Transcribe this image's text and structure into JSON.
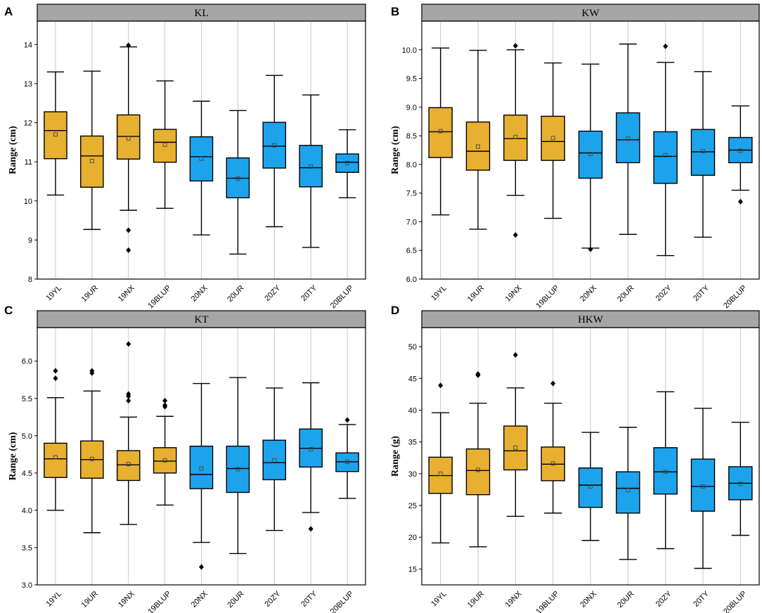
{
  "figure": {
    "colors": {
      "year2019": "#E8B030",
      "year2020": "#1CA3EC",
      "header": "#A6A6A6",
      "outlier": "#000000",
      "grid": "#C8C8C8"
    }
  },
  "chart_data": [
    {
      "type": "box",
      "panel": "A",
      "title": "KL",
      "ylabel": "Range (cm)",
      "ylim": [
        8,
        14.6
      ],
      "yticks": [
        8,
        9,
        10,
        11,
        12,
        13,
        14
      ],
      "categories": [
        "19YL",
        "19UR",
        "19NX",
        "19BLUP",
        "20NX",
        "20UR",
        "20ZY",
        "20TY",
        "20BLUP"
      ],
      "boxes": [
        {
          "min": 10.15,
          "q1": 11.08,
          "median": 11.8,
          "q3": 12.28,
          "max": 13.3,
          "mean": 11.7,
          "outliers": []
        },
        {
          "min": 9.27,
          "q1": 10.35,
          "median": 11.15,
          "q3": 11.66,
          "max": 13.32,
          "mean": 11.02,
          "outliers": []
        },
        {
          "min": 9.76,
          "q1": 11.07,
          "median": 11.65,
          "q3": 12.2,
          "max": 13.94,
          "mean": 11.6,
          "outliers": [
            13.98,
            9.25,
            8.74
          ]
        },
        {
          "min": 9.81,
          "q1": 10.99,
          "median": 11.5,
          "q3": 11.83,
          "max": 13.07,
          "mean": 11.44,
          "outliers": []
        },
        {
          "min": 9.13,
          "q1": 10.51,
          "median": 11.13,
          "q3": 11.64,
          "max": 12.55,
          "mean": 11.08,
          "outliers": []
        },
        {
          "min": 8.64,
          "q1": 10.08,
          "median": 10.58,
          "q3": 11.1,
          "max": 12.31,
          "mean": 10.57,
          "outliers": []
        },
        {
          "min": 9.34,
          "q1": 10.84,
          "median": 11.4,
          "q3": 12.01,
          "max": 13.21,
          "mean": 11.42,
          "outliers": []
        },
        {
          "min": 8.81,
          "q1": 10.36,
          "median": 10.85,
          "q3": 11.42,
          "max": 12.71,
          "mean": 10.88,
          "outliers": []
        },
        {
          "min": 10.08,
          "q1": 10.73,
          "median": 10.99,
          "q3": 11.2,
          "max": 11.82,
          "mean": 10.97,
          "outliers": []
        }
      ]
    },
    {
      "type": "box",
      "panel": "B",
      "title": "KW",
      "ylabel": "Range (cm)",
      "ylim": [
        6.0,
        10.5
      ],
      "yticks": [
        "6.0",
        "6.5",
        "7.0",
        "7.5",
        "8.0",
        "8.5",
        "9.0",
        "9.5",
        "10.0"
      ],
      "categories": [
        "19YL",
        "19UR",
        "19NX",
        "19BLUP",
        "20NX",
        "20UR",
        "20ZY",
        "20TY",
        "20BLUP"
      ],
      "boxes": [
        {
          "min": 7.12,
          "q1": 8.12,
          "median": 8.57,
          "q3": 8.99,
          "max": 10.03,
          "mean": 8.58,
          "outliers": []
        },
        {
          "min": 6.87,
          "q1": 7.9,
          "median": 8.23,
          "q3": 8.74,
          "max": 9.99,
          "mean": 8.31,
          "outliers": []
        },
        {
          "min": 7.46,
          "q1": 8.07,
          "median": 8.45,
          "q3": 8.86,
          "max": 10.0,
          "mean": 8.48,
          "outliers": [
            10.07,
            6.77
          ]
        },
        {
          "min": 7.06,
          "q1": 8.07,
          "median": 8.4,
          "q3": 8.84,
          "max": 9.77,
          "mean": 8.46,
          "outliers": []
        },
        {
          "min": 6.54,
          "q1": 7.76,
          "median": 8.2,
          "q3": 8.58,
          "max": 9.75,
          "mean": 8.18,
          "outliers": [
            6.52
          ]
        },
        {
          "min": 6.78,
          "q1": 8.03,
          "median": 8.43,
          "q3": 8.9,
          "max": 10.1,
          "mean": 8.45,
          "outliers": []
        },
        {
          "min": 6.41,
          "q1": 7.67,
          "median": 8.14,
          "q3": 8.57,
          "max": 9.78,
          "mean": 8.16,
          "outliers": [
            10.06
          ]
        },
        {
          "min": 6.73,
          "q1": 7.81,
          "median": 8.22,
          "q3": 8.61,
          "max": 9.62,
          "mean": 8.23,
          "outliers": []
        },
        {
          "min": 7.55,
          "q1": 8.03,
          "median": 8.25,
          "q3": 8.47,
          "max": 9.02,
          "mean": 8.24,
          "outliers": [
            7.35
          ]
        }
      ]
    },
    {
      "type": "box",
      "panel": "C",
      "title": "KT",
      "ylabel": "Range (cm)",
      "ylim": [
        3.0,
        6.45
      ],
      "yticks": [
        "3.0",
        "3.5",
        "4.0",
        "4.5",
        "5.0",
        "5.5",
        "6.0"
      ],
      "categories": [
        "19YL",
        "19UR",
        "19NX",
        "19BLUP",
        "20NX",
        "20UR",
        "20ZY",
        "20TY",
        "20BLUP"
      ],
      "boxes": [
        {
          "min": 4.0,
          "q1": 4.44,
          "median": 4.69,
          "q3": 4.9,
          "max": 5.51,
          "mean": 4.71,
          "outliers": [
            5.87,
            5.77
          ]
        },
        {
          "min": 3.7,
          "q1": 4.43,
          "median": 4.68,
          "q3": 4.93,
          "max": 5.6,
          "mean": 4.69,
          "outliers": [
            5.87,
            5.84
          ]
        },
        {
          "min": 3.81,
          "q1": 4.4,
          "median": 4.61,
          "q3": 4.8,
          "max": 5.25,
          "mean": 4.62,
          "outliers": [
            6.23,
            5.56,
            5.53,
            5.47
          ]
        },
        {
          "min": 4.07,
          "q1": 4.5,
          "median": 4.66,
          "q3": 4.84,
          "max": 5.26,
          "mean": 4.67,
          "outliers": [
            5.47,
            5.41,
            5.39
          ]
        },
        {
          "min": 3.57,
          "q1": 4.29,
          "median": 4.48,
          "q3": 4.86,
          "max": 5.7,
          "mean": 4.56,
          "outliers": [
            3.24
          ]
        },
        {
          "min": 3.42,
          "q1": 4.24,
          "median": 4.56,
          "q3": 4.86,
          "max": 5.78,
          "mean": 4.55,
          "outliers": []
        },
        {
          "min": 3.73,
          "q1": 4.41,
          "median": 4.64,
          "q3": 4.94,
          "max": 5.64,
          "mean": 4.67,
          "outliers": []
        },
        {
          "min": 3.97,
          "q1": 4.58,
          "median": 4.83,
          "q3": 5.09,
          "max": 5.71,
          "mean": 4.82,
          "outliers": [
            3.75
          ]
        },
        {
          "min": 4.16,
          "q1": 4.52,
          "median": 4.65,
          "q3": 4.77,
          "max": 5.15,
          "mean": 4.65,
          "outliers": [
            5.21
          ]
        }
      ]
    },
    {
      "type": "box",
      "panel": "D",
      "title": "HKW",
      "ylabel": "Range (g)",
      "ylim": [
        12.5,
        53
      ],
      "yticks": [
        "15",
        "20",
        "25",
        "30",
        "35",
        "40",
        "45",
        "50"
      ],
      "categories": [
        "19YL",
        "19UR",
        "19NX",
        "19BLUP",
        "20NX",
        "20UR",
        "20ZY",
        "20TY",
        "20BLUP"
      ],
      "boxes": [
        {
          "min": 19.1,
          "q1": 26.9,
          "median": 29.7,
          "q3": 32.6,
          "max": 39.6,
          "mean": 30.0,
          "outliers": [
            43.9
          ]
        },
        {
          "min": 18.5,
          "q1": 26.7,
          "median": 30.5,
          "q3": 33.9,
          "max": 41.1,
          "mean": 30.6,
          "outliers": [
            45.7,
            45.5
          ]
        },
        {
          "min": 23.3,
          "q1": 30.6,
          "median": 33.6,
          "q3": 37.5,
          "max": 43.5,
          "mean": 34.1,
          "outliers": [
            48.7
          ]
        },
        {
          "min": 23.8,
          "q1": 28.9,
          "median": 31.5,
          "q3": 34.2,
          "max": 41.1,
          "mean": 31.6,
          "outliers": [
            44.2
          ]
        },
        {
          "min": 19.5,
          "q1": 24.7,
          "median": 28.2,
          "q3": 30.9,
          "max": 36.5,
          "mean": 28.0,
          "outliers": []
        },
        {
          "min": 16.5,
          "q1": 23.8,
          "median": 27.7,
          "q3": 30.3,
          "max": 37.3,
          "mean": 27.4,
          "outliers": []
        },
        {
          "min": 18.2,
          "q1": 26.8,
          "median": 30.3,
          "q3": 34.1,
          "max": 42.9,
          "mean": 30.3,
          "outliers": []
        },
        {
          "min": 15.1,
          "q1": 24.1,
          "median": 28.0,
          "q3": 32.3,
          "max": 40.3,
          "mean": 28.0,
          "outliers": []
        },
        {
          "min": 20.3,
          "q1": 25.9,
          "median": 28.5,
          "q3": 31.1,
          "max": 38.1,
          "mean": 28.4,
          "outliers": []
        }
      ]
    }
  ]
}
